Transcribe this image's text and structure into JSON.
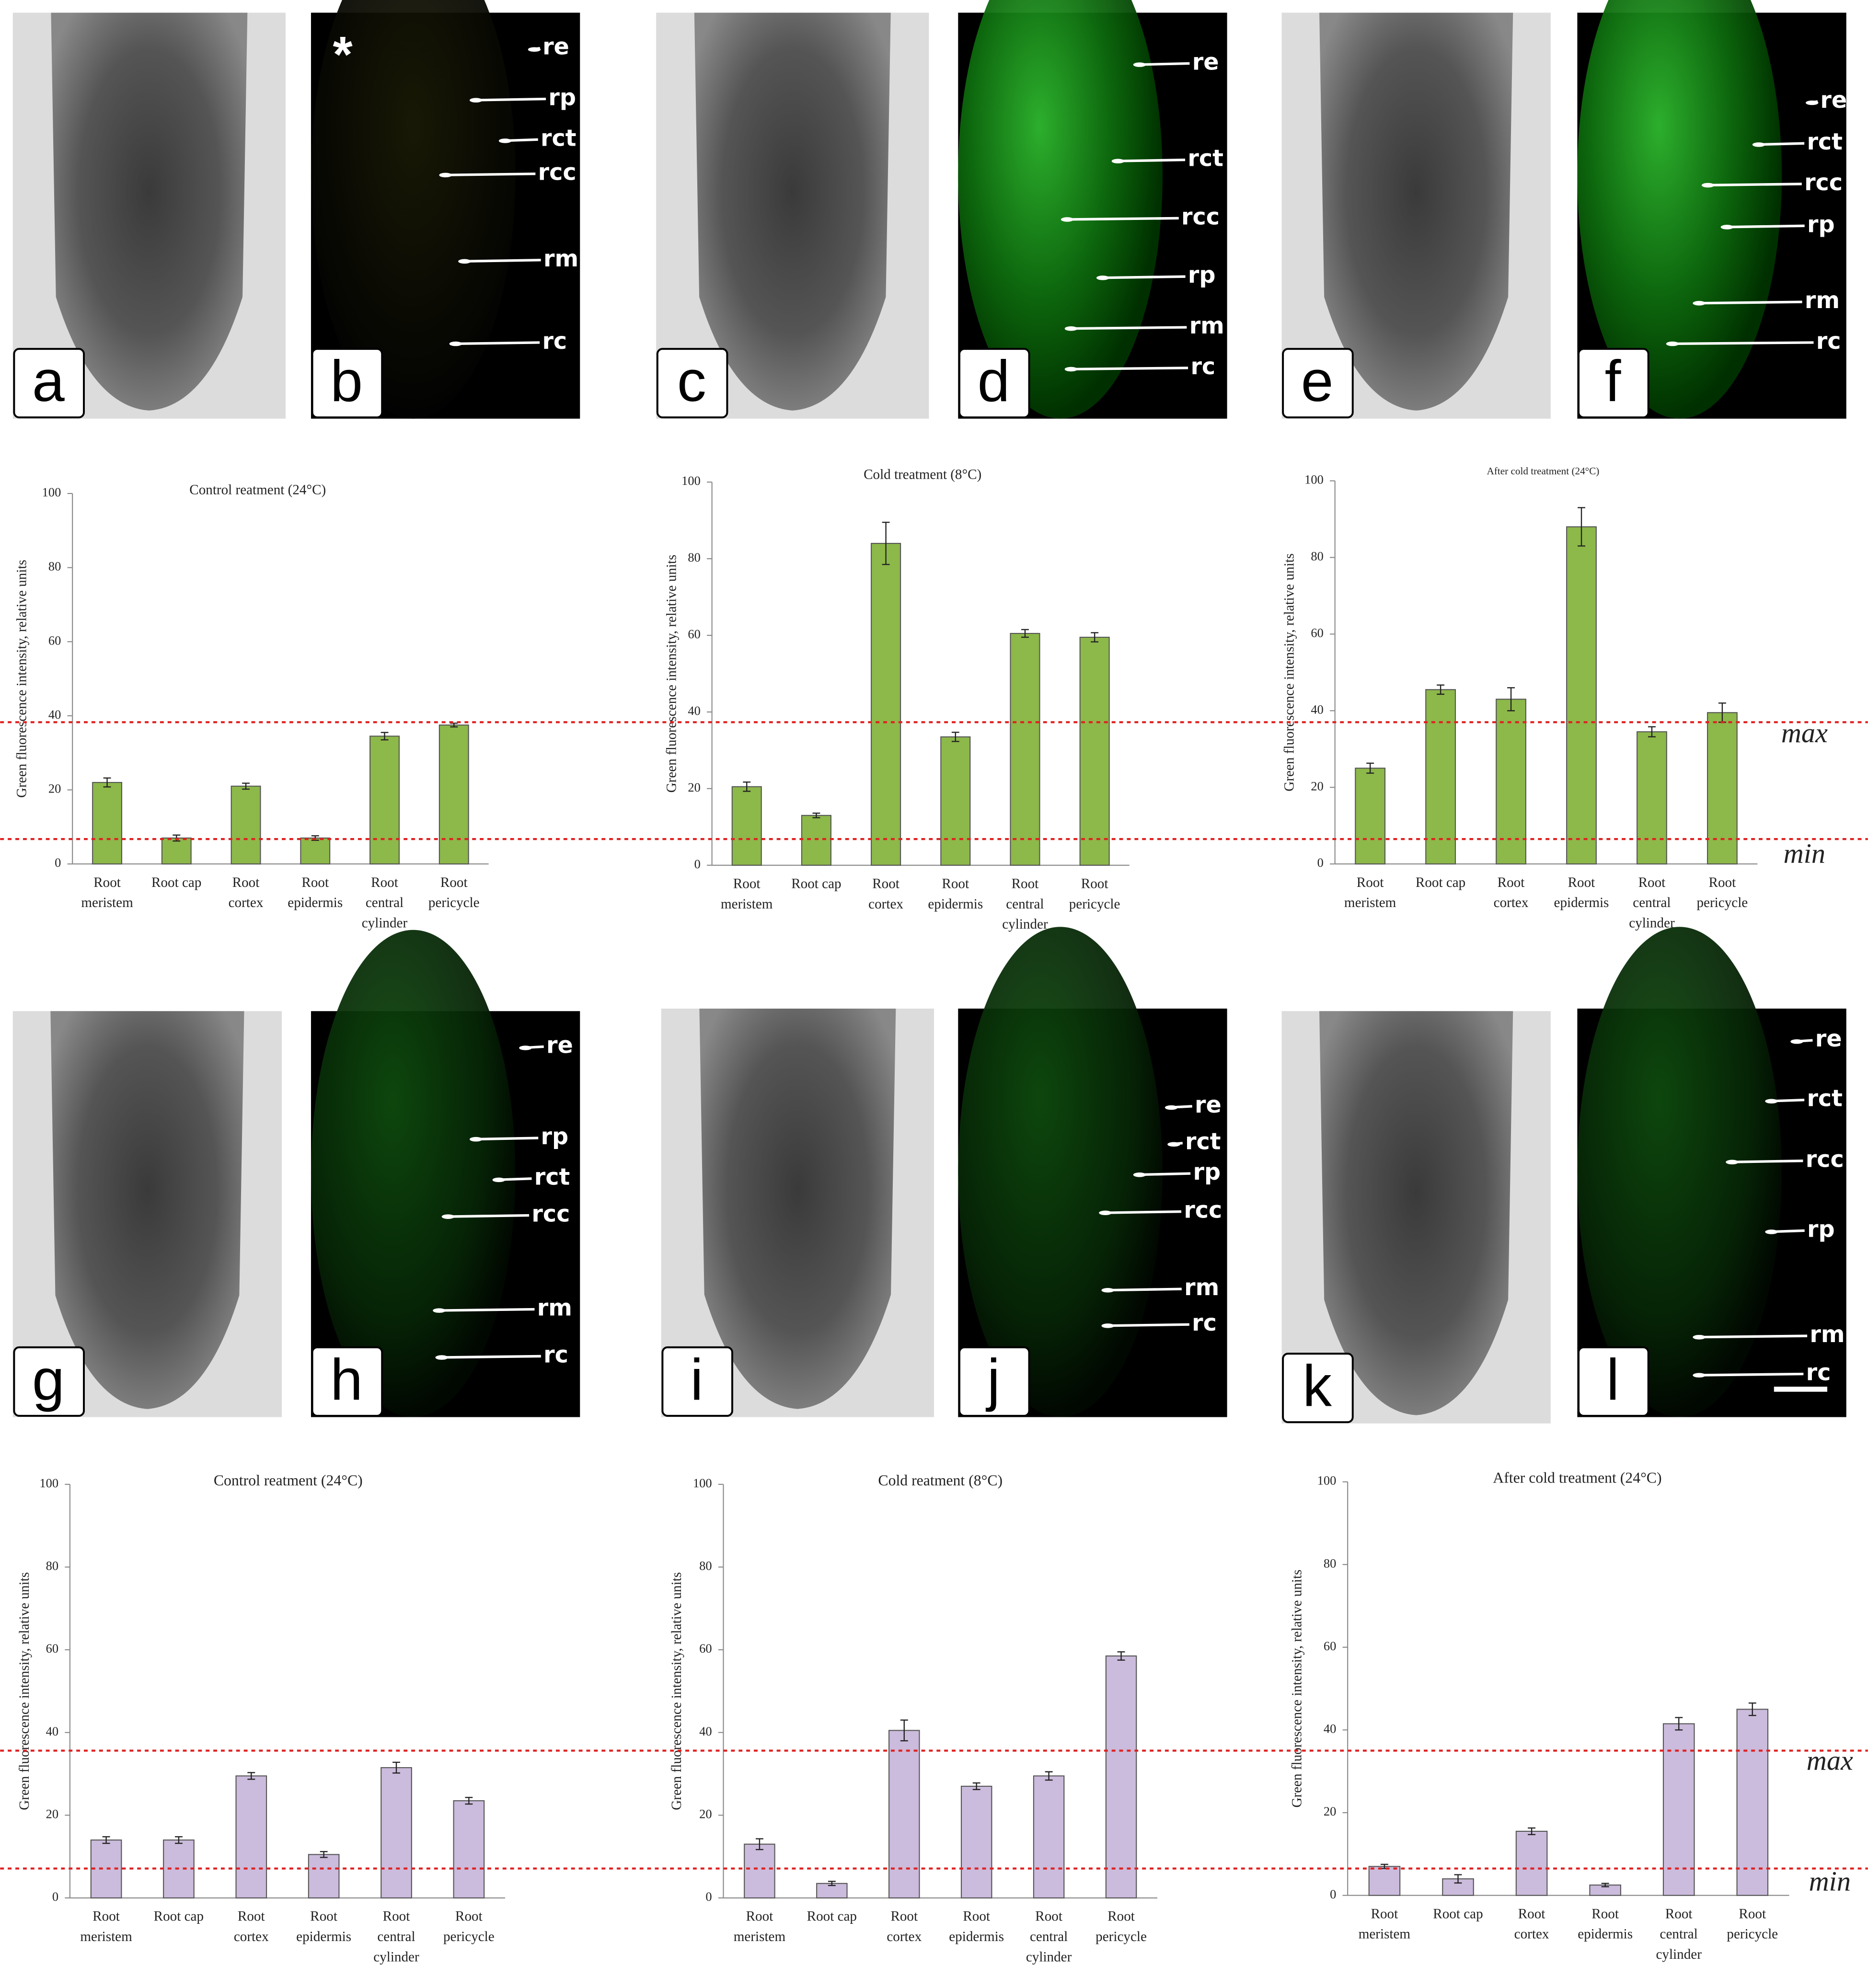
{
  "panels": [
    {
      "letter": "a"
    },
    {
      "letter": "b",
      "marker": "*",
      "labels": [
        "re",
        "rp",
        "rct",
        "rcc",
        "rm",
        "rc"
      ]
    },
    {
      "letter": "c"
    },
    {
      "letter": "d",
      "labels": [
        "re",
        "rct",
        "rcc",
        "rp",
        "rm",
        "rc"
      ]
    },
    {
      "letter": "e"
    },
    {
      "letter": "f",
      "labels": [
        "re",
        "rct",
        "rcc",
        "rp",
        "rm",
        "rc"
      ]
    },
    {
      "letter": "g"
    },
    {
      "letter": "h",
      "labels": [
        "re",
        "rp",
        "rct",
        "rcc",
        "rm",
        "rc"
      ]
    },
    {
      "letter": "i"
    },
    {
      "letter": "j",
      "labels": [
        "re",
        "rct",
        "rp",
        "rcc",
        "rm",
        "rc"
      ]
    },
    {
      "letter": "k"
    },
    {
      "letter": "l",
      "labels": [
        "re",
        "rct",
        "rcc",
        "rp",
        "rm",
        "rc"
      ]
    }
  ],
  "chart_data": [
    {
      "type": "bar",
      "title": "Control reatment (24°C)",
      "ylabel": "Green fluorescence intensity, relative units",
      "categories": [
        "Root meristem",
        "Root cap",
        "Root cortex",
        "Root epidermis",
        "Root central cylinder",
        "Root pericycle"
      ],
      "values": [
        22,
        7,
        21,
        7,
        34.5,
        37.5
      ],
      "errors": [
        1.2,
        0.8,
        0.8,
        0.6,
        1,
        0.5
      ],
      "color": "#8db84a",
      "ylim": [
        0,
        100
      ],
      "yticks": [
        0,
        20,
        40,
        60,
        80,
        100
      ]
    },
    {
      "type": "bar",
      "title": "Cold treatment (8°C)",
      "ylabel": "Green fluorescence intensity, relative units",
      "categories": [
        "Root meristem",
        "Root cap",
        "Root cortex",
        "Root epidermis",
        "Root central cylinder",
        "Root pericycle"
      ],
      "values": [
        20.5,
        13,
        84,
        33.5,
        60.5,
        59.5
      ],
      "errors": [
        1.2,
        0.6,
        5.5,
        1.2,
        1,
        1.2
      ],
      "color": "#8db84a",
      "ylim": [
        0,
        100
      ],
      "yticks": [
        0,
        20,
        40,
        60,
        80,
        100
      ]
    },
    {
      "type": "bar",
      "title": "After cold treatment (24°C)",
      "ylabel": "Green fluorescence intensity, relative units",
      "categories": [
        "Root meristem",
        "Root cap",
        "Root cortex",
        "Root epidermis",
        "Root central cylinder",
        "Root pericycle"
      ],
      "values": [
        25,
        45.5,
        43,
        88,
        34.5,
        39.5
      ],
      "errors": [
        1.3,
        1.2,
        3,
        5,
        1.3,
        2.5
      ],
      "color": "#8db84a",
      "ylim": [
        0,
        100
      ],
      "yticks": [
        0,
        20,
        40,
        60,
        80,
        100
      ],
      "reference_lines": [
        {
          "label": "max",
          "value": 37
        },
        {
          "label": "min",
          "value": 6.5
        }
      ]
    },
    {
      "type": "bar",
      "title": "Control reatment (24°C)",
      "ylabel": "Green fluorescence intensity, relative units",
      "categories": [
        "Root meristem",
        "Root cap",
        "Root cortex",
        "Root epidermis",
        "Root central cylinder",
        "Root pericycle"
      ],
      "values": [
        14,
        14,
        29.5,
        10.5,
        31.5,
        23.5
      ],
      "errors": [
        0.8,
        0.8,
        0.8,
        0.7,
        1.3,
        0.8
      ],
      "color": "#cbbbdc",
      "ylim": [
        0,
        100
      ],
      "yticks": [
        0,
        20,
        40,
        60,
        80,
        100
      ]
    },
    {
      "type": "bar",
      "title": "Cold reatment (8°C)",
      "ylabel": "Green fluorescence intensity, relative units",
      "categories": [
        "Root meristem",
        "Root cap",
        "Root cortex",
        "Root epidermis",
        "Root central cylinder",
        "Root pericycle"
      ],
      "values": [
        13,
        3.5,
        40.5,
        27,
        29.5,
        58.5
      ],
      "errors": [
        1.3,
        0.5,
        2.5,
        0.8,
        1,
        1
      ],
      "color": "#cbbbdc",
      "ylim": [
        0,
        100
      ],
      "yticks": [
        0,
        20,
        40,
        60,
        80,
        100
      ]
    },
    {
      "type": "bar",
      "title": "After cold treatment (24°C)",
      "ylabel": "Green fluorescence intensity, relative units",
      "categories": [
        "Root meristem",
        "Root cap",
        "Root cortex",
        "Root epidermis",
        "Root central cylinder",
        "Root pericycle"
      ],
      "values": [
        7,
        4,
        15.5,
        2.5,
        41.5,
        45
      ],
      "errors": [
        0.5,
        1,
        0.8,
        0.4,
        1.5,
        1.5
      ],
      "color": "#cbbbdc",
      "ylim": [
        0,
        100
      ],
      "yticks": [
        0,
        20,
        40,
        60,
        80,
        100
      ],
      "reference_lines": [
        {
          "label": "max",
          "value": 35
        },
        {
          "label": "min",
          "value": 6.5
        }
      ]
    }
  ]
}
